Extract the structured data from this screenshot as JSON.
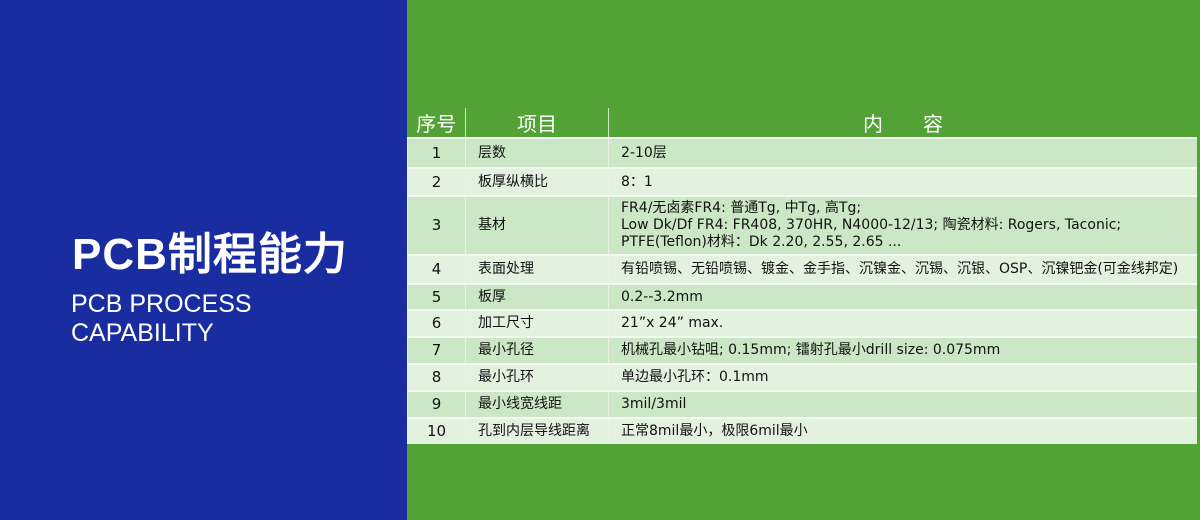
{
  "left": {
    "title": "PCB制程能力",
    "subtitle_lines": [
      "PCB PROCESS",
      "CAPABILITY"
    ]
  },
  "colors": {
    "left_bg": "#1a2da0",
    "right_bg": "#52a236",
    "row_dark": "#cbe7c6",
    "row_light": "#e3f2df"
  },
  "table": {
    "headers": [
      "序号",
      "项目",
      "内　　容"
    ],
    "rows": [
      {
        "no": "1",
        "item": "层数",
        "content": [
          "2-10层"
        ]
      },
      {
        "no": "2",
        "item": "板厚纵横比",
        "content": [
          "8：1"
        ]
      },
      {
        "no": "3",
        "item": "基材",
        "content": [
          "FR4/无卤素FR4:  普通Tg, 中Tg, 高Tg;",
          "Low Dk/Df FR4:  FR408, 370HR, N4000-12/13;     陶瓷材料: Rogers, Taconic;",
          "PTFE(Teflon)材料：Dk 2.20, 2.55, 2.65 ..."
        ]
      },
      {
        "no": "4",
        "item": "表面处理",
        "content": [
          "有铅喷锡、无铅喷锡、镀金、金手指、沉镍金、沉锡、沉银、OSP、沉镍钯金(可金线邦定)"
        ]
      },
      {
        "no": "5",
        "item": "板厚",
        "content": [
          "0.2--3.2mm"
        ]
      },
      {
        "no": "6",
        "item": "加工尺寸",
        "content": [
          "21”x 24”  max."
        ]
      },
      {
        "no": "7",
        "item": "最小孔径",
        "content": [
          "机械孔最小钻咀; 0.15mm;        镭射孔最小drill size: 0.075mm"
        ]
      },
      {
        "no": "8",
        "item": "最小孔环",
        "content": [
          "单边最小孔环：0.1mm"
        ]
      },
      {
        "no": "9",
        "item": "最小线宽线距",
        "content": [
          "3mil/3mil"
        ]
      },
      {
        "no": "10",
        "item": "孔到内层导线距离",
        "content": [
          "正常8mil最小，极限6mil最小"
        ]
      }
    ]
  }
}
